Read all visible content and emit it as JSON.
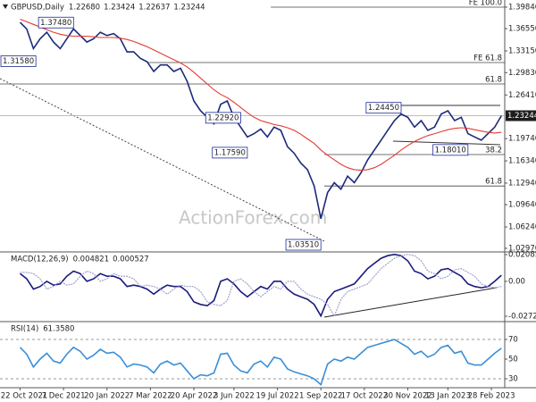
{
  "chart_data": [
    {
      "type": "line",
      "title": "GBPUSD,Daily",
      "header_values": [
        {
          "value": 1.2268,
          "label": "1.22680"
        },
        1.23424,
        1.22637,
        1.23244
      ],
      "xlim": [
        -3,
        72.5
      ],
      "ylim": [
        1.0242,
        1.4093
      ],
      "yticks": [
        {
          "value": 1.3984,
          "label": "1.39840"
        },
        {
          "value": 1.3655,
          "label": "1.36550"
        },
        {
          "value": 1.3315,
          "label": "1.33150"
        },
        {
          "value": 1.2983,
          "label": "1.29830"
        },
        {
          "value": 1.2641,
          "label": "1.26410"
        },
        {
          "value": 1.1974,
          "label": "1.19740"
        },
        {
          "value": 1.1634,
          "label": "1.16340"
        },
        {
          "value": 1.1294,
          "label": "1.12940"
        },
        {
          "value": 1.0964,
          "label": "1.09640"
        },
        {
          "value": 1.0624,
          "label": "1.06240"
        },
        {
          "value": 1.0297,
          "label": "1.02970"
        }
      ],
      "last_price": 1.23244,
      "series": [
        {
          "name": "GBPUSD",
          "color": "#1c2a7a",
          "values": [
            1.375,
            1.365,
            1.335,
            1.35,
            1.36,
            1.345,
            1.335,
            1.35,
            1.365,
            1.355,
            1.345,
            1.35,
            1.36,
            1.355,
            1.358,
            1.35,
            1.33,
            1.33,
            1.32,
            1.315,
            1.3,
            1.31,
            1.31,
            1.3,
            1.305,
            1.285,
            1.255,
            1.24,
            1.23,
            1.22,
            1.25,
            1.255,
            1.23,
            1.215,
            1.2,
            1.205,
            1.212,
            1.2,
            1.215,
            1.21,
            1.185,
            1.175,
            1.16,
            1.15,
            1.125,
            1.075,
            1.115,
            1.13,
            1.12,
            1.14,
            1.13,
            1.145,
            1.165,
            1.18,
            1.195,
            1.21,
            1.225,
            1.235,
            1.23,
            1.215,
            1.225,
            1.21,
            1.215,
            1.235,
            1.24,
            1.225,
            1.23,
            1.205,
            1.2,
            1.195,
            1.205,
            1.215,
            1.2324
          ]
        },
        {
          "name": "MA",
          "color": "#e53935",
          "values": [
            1.38,
            1.376,
            1.372,
            1.368,
            1.364,
            1.36,
            1.357,
            1.355,
            1.354,
            1.354,
            1.354,
            1.353,
            1.352,
            1.352,
            1.352,
            1.351,
            1.349,
            1.346,
            1.342,
            1.338,
            1.333,
            1.328,
            1.323,
            1.318,
            1.313,
            1.307,
            1.299,
            1.29,
            1.281,
            1.272,
            1.265,
            1.26,
            1.253,
            1.245,
            1.237,
            1.23,
            1.225,
            1.222,
            1.219,
            1.217,
            1.214,
            1.21,
            1.204,
            1.197,
            1.19,
            1.18,
            1.172,
            1.165,
            1.158,
            1.153,
            1.15,
            1.149,
            1.15,
            1.153,
            1.158,
            1.165,
            1.172,
            1.18,
            1.187,
            1.193,
            1.198,
            1.202,
            1.205,
            1.208,
            1.211,
            1.213,
            1.214,
            1.213,
            1.211,
            1.209,
            1.207,
            1.206,
            1.207
          ]
        }
      ],
      "annotations": [
        {
          "x": 8,
          "value": 1.3748,
          "label": "1.37480"
        },
        {
          "x": 2.3,
          "value": 1.3158,
          "label": "1.31580"
        },
        {
          "x": 33,
          "value": 1.2292,
          "label": "1.22920"
        },
        {
          "x": 34,
          "value": 1.1759,
          "label": "1.17590"
        },
        {
          "x": 57,
          "value": 1.2445,
          "label": "1.24450"
        },
        {
          "x": 67,
          "value": 1.1801,
          "label": "1.18010"
        },
        {
          "x": 45,
          "value": 1.0351,
          "label": "1.03510"
        }
      ],
      "levels": [
        {
          "label": "FE 100.0",
          "value": 1.3984,
          "start": 37.5
        },
        {
          "label": "FE 61.8",
          "value": 1.3137,
          "start": 19
        },
        {
          "label": "61.8",
          "value": 1.2809,
          "start": -3
        },
        {
          "label": "38.2",
          "value": 1.173,
          "start": 45.5
        },
        {
          "label": "61.8",
          "value": 1.125,
          "start": 45.5
        }
      ]
    },
    {
      "type": "line",
      "title": "MACD(12,26,9)",
      "header_values": [
        0.004821,
        0.000527
      ],
      "xlim": [
        -3,
        72.5
      ],
      "ylim": [
        -0.03139,
        0.02295
      ],
      "yticks": [
        0.020858,
        {
          "value": 0,
          "label": "0.00"
        },
        -0.027213
      ],
      "series": [
        {
          "name": "MACD",
          "color": "#1a1a80",
          "values": [
            0.006,
            0.002,
            -0.006,
            -0.004,
            0.0,
            -0.003,
            -0.002,
            0.004,
            0.008,
            0.006,
            0.0,
            0.002,
            0.006,
            0.004,
            0.004,
            0.002,
            -0.004,
            -0.003,
            -0.004,
            -0.006,
            -0.01,
            -0.006,
            -0.003,
            -0.004,
            -0.004,
            -0.008,
            -0.016,
            -0.018,
            -0.019,
            -0.015,
            0.0,
            0.002,
            -0.002,
            -0.008,
            -0.012,
            -0.008,
            -0.004,
            -0.006,
            0.0,
            0.0,
            -0.006,
            -0.01,
            -0.012,
            -0.014,
            -0.018,
            -0.027,
            -0.014,
            -0.008,
            -0.006,
            -0.004,
            -0.002,
            0.004,
            0.01,
            0.014,
            0.018,
            0.02,
            0.021,
            0.02,
            0.016,
            0.008,
            0.006,
            0.002,
            0.004,
            0.009,
            0.01,
            0.007,
            0.004,
            -0.002,
            -0.004,
            -0.005,
            -0.004,
            0.0,
            0.0048
          ]
        },
        {
          "name": "Signal",
          "color": "#9a9ac8",
          "values": [
            0.007,
            0.007,
            0.006,
            0.002,
            -0.006,
            -0.004,
            0.0,
            -0.003,
            -0.002,
            0.004,
            0.008,
            0.006,
            0.0,
            0.002,
            0.006,
            0.004,
            0.004,
            0.002,
            -0.004,
            -0.003,
            -0.004,
            -0.006,
            -0.01,
            -0.006,
            -0.003,
            -0.004,
            -0.004,
            -0.008,
            -0.016,
            -0.018,
            -0.019,
            -0.015,
            0.0,
            0.002,
            -0.002,
            -0.008,
            -0.012,
            -0.008,
            -0.004,
            -0.006,
            0.0,
            0.0,
            -0.006,
            -0.01,
            -0.012,
            -0.014,
            -0.018,
            -0.027,
            -0.014,
            -0.008,
            -0.006,
            -0.004,
            -0.002,
            0.004,
            0.01,
            0.014,
            0.018,
            0.02,
            0.021,
            0.02,
            0.016,
            0.008,
            0.006,
            0.002,
            0.004,
            0.009,
            0.01,
            0.007,
            0.004,
            -0.002,
            -0.004,
            -0.005,
            -0.004
          ]
        }
      ]
    },
    {
      "type": "line",
      "title": "RSI(14)",
      "header_values": [
        {
          "value": 61.358,
          "label": "61.3580"
        }
      ],
      "xlim": [
        -3,
        72.5
      ],
      "ylim": [
        20.9,
        88.2
      ],
      "yticks": [
        70,
        50,
        30
      ],
      "dashed_levels": [
        70,
        30
      ],
      "xticks": [
        {
          "value": 0,
          "label": "22 Oct 2021"
        },
        {
          "value": 6.5,
          "label": "7 Dec 2021"
        },
        {
          "value": 13,
          "label": "20 Jan 2022"
        },
        {
          "value": 19.5,
          "label": "7 Mar 2022"
        },
        {
          "value": 26,
          "label": "20 Apr 2022"
        },
        {
          "value": 32,
          "label": "3 Jun 2022"
        },
        {
          "value": 38.5,
          "label": "19 Jul 2022"
        },
        {
          "value": 45,
          "label": "1 Sep 2022"
        },
        {
          "value": 51.5,
          "label": "17 Oct 2022"
        },
        {
          "value": 58,
          "label": "30 Nov 2022"
        },
        {
          "value": 64,
          "label": "13 Jan 2023"
        },
        {
          "value": 70.5,
          "label": "28 Feb 2023"
        }
      ],
      "series": [
        {
          "name": "RSI",
          "color": "#3a8fd8",
          "values": [
            62,
            55,
            42,
            50,
            56,
            48,
            46,
            55,
            62,
            58,
            50,
            54,
            60,
            56,
            57,
            52,
            42,
            45,
            44,
            42,
            36,
            45,
            48,
            44,
            46,
            38,
            30,
            34,
            33,
            36,
            55,
            56,
            44,
            38,
            36,
            45,
            48,
            42,
            52,
            50,
            40,
            37,
            35,
            33,
            30,
            24,
            45,
            50,
            48,
            52,
            50,
            56,
            62,
            64,
            66,
            68,
            70,
            66,
            62,
            55,
            58,
            52,
            55,
            62,
            64,
            56,
            58,
            46,
            44,
            44,
            50,
            56,
            61
          ]
        }
      ]
    }
  ],
  "watermark": "ActionForex.com"
}
